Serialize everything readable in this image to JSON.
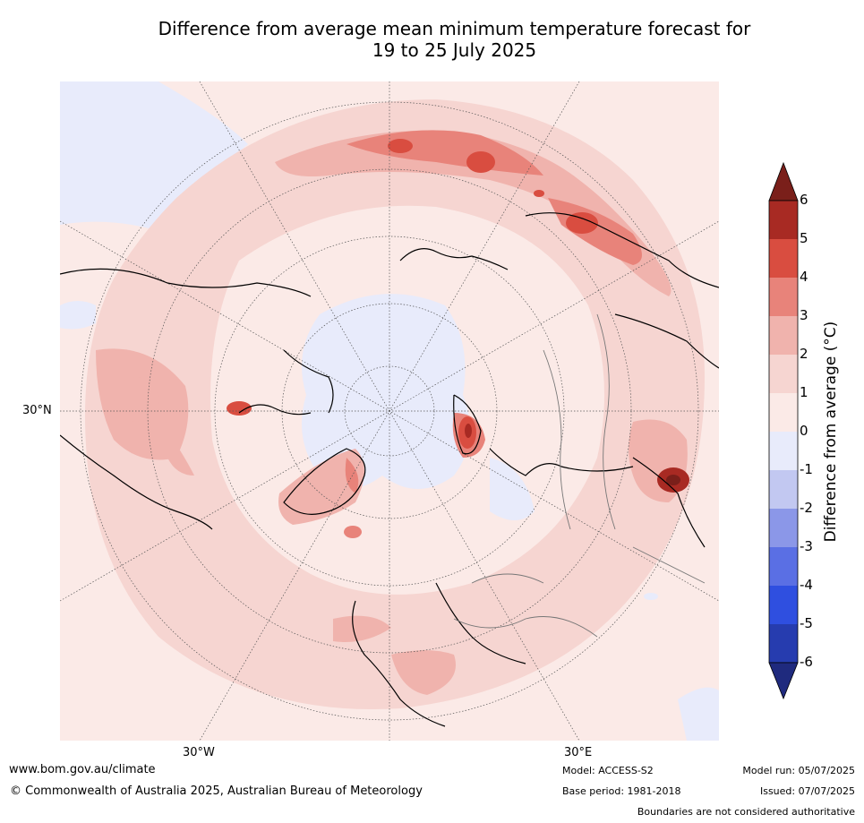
{
  "title_line1": "Difference from average mean minimum temperature forecast for",
  "title_line2": "19 to 25 July 2025",
  "map": {
    "lat_label": "30°N",
    "lon_labels": [
      "30°W",
      "30°E"
    ]
  },
  "colorbar": {
    "title": "Difference from average ($^\\circ$C)",
    "title_display": "Difference from average (°C)",
    "ticks": [
      "6",
      "5",
      "4",
      "3",
      "2",
      "1",
      "0",
      "-1",
      "-2",
      "-3",
      "-4",
      "-5",
      "-6"
    ],
    "colors": [
      "#7a1f1a",
      "#a82a23",
      "#d94d40",
      "#e8837a",
      "#f0b3ad",
      "#f6d5d1",
      "#fbeae7",
      "#e8ebfb",
      "#c2c8f1",
      "#8b97e8",
      "#5a6fe4",
      "#2f4fe0",
      "#263caf",
      "#1f2a7e"
    ]
  },
  "footer": {
    "url": "www.bom.gov.au/climate",
    "copyright": "© Commonwealth of Australia 2025, Australian Bureau of Meteorology",
    "model": "Model: ACCESS-S2",
    "base_period": "Base period: 1981-2018",
    "model_run": "Model run: 05/07/2025",
    "issued": "Issued: 07/07/2025",
    "disclaimer": "Boundaries are not considered authoritative"
  }
}
